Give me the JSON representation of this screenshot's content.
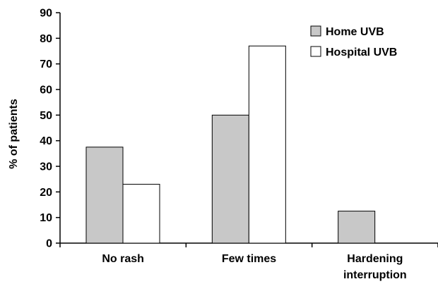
{
  "chart_data": {
    "type": "bar",
    "title": "",
    "xlabel": "",
    "ylabel": "% of patients",
    "ylim": [
      0,
      90
    ],
    "yticks": [
      0,
      10,
      20,
      30,
      40,
      50,
      60,
      70,
      80,
      90
    ],
    "grid": false,
    "legend_position": "top-right",
    "categories": [
      "No rash",
      "Few times",
      "Hardening interruption"
    ],
    "category_lines": [
      [
        "No rash"
      ],
      [
        "Few times"
      ],
      [
        "Hardening",
        "interruption"
      ]
    ],
    "series": [
      {
        "name": "Home UVB",
        "color": "#c8c8c8",
        "values": [
          37.5,
          50,
          12.5
        ]
      },
      {
        "name": "Hospital UVB",
        "color": "#ffffff",
        "values": [
          23,
          77,
          0
        ]
      }
    ]
  }
}
